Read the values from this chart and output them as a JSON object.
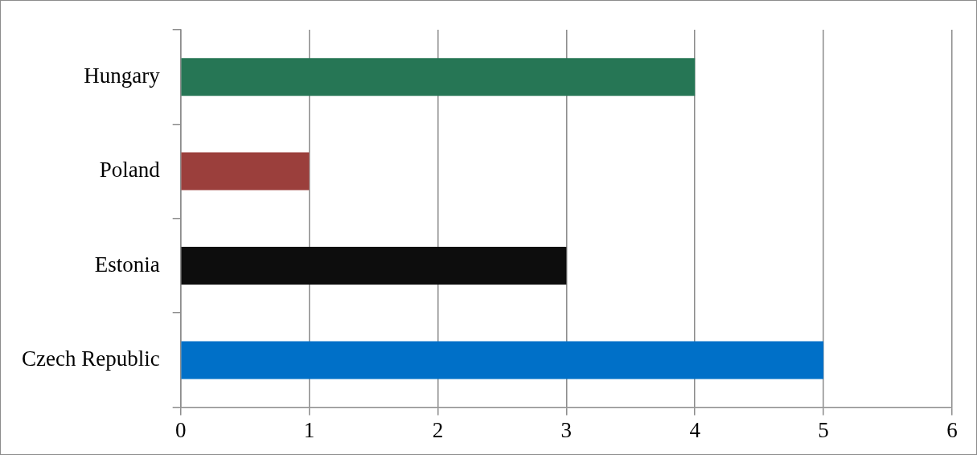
{
  "chart_data": {
    "type": "bar",
    "orientation": "horizontal",
    "categories": [
      "Hungary",
      "Poland",
      "Estonia",
      "Czech Republic"
    ],
    "values": [
      4,
      1,
      3,
      5
    ],
    "colors": [
      "#267655",
      "#9b3f3c",
      "#0d0d0d",
      "#0070c8"
    ],
    "xlim": [
      0,
      6
    ],
    "xticks": [
      0,
      1,
      2,
      3,
      4,
      5,
      6
    ],
    "grid": "x",
    "legend": false
  }
}
